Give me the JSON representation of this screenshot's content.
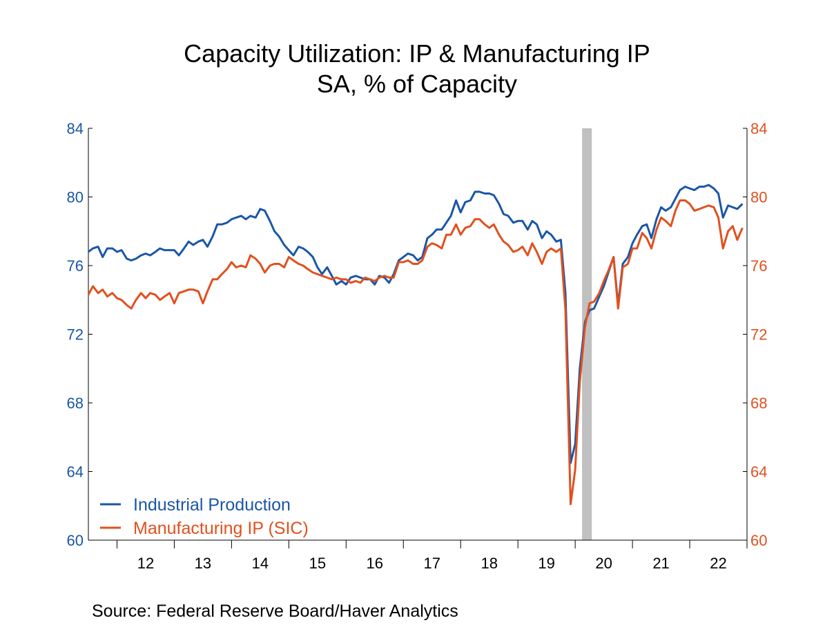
{
  "chart_data": {
    "type": "line",
    "title": "Capacity Utilization: IP & Manufacturing IP",
    "subtitle": "SA, % of Capacity",
    "source": "Source:  Federal Reserve Board/Haver Analytics",
    "x_tick_labels": [
      "12",
      "13",
      "14",
      "15",
      "16",
      "17",
      "18",
      "19",
      "20",
      "21",
      "22"
    ],
    "xlim": [
      2011.5,
      2023.0
    ],
    "y_left": {
      "range": [
        60,
        84
      ],
      "ticks": [
        "60",
        "64",
        "68",
        "72",
        "76",
        "80",
        "84"
      ],
      "color": "#1a56a6"
    },
    "y_right": {
      "range": [
        60,
        84
      ],
      "ticks": [
        "60",
        "64",
        "68",
        "72",
        "76",
        "80",
        "84"
      ],
      "color": "#e0501e"
    },
    "recession": {
      "start": 2020.12,
      "end": 2020.29,
      "color": "#c0c0c0"
    },
    "legend_position": "bottom-left",
    "series": [
      {
        "name": "Industrial Production",
        "color": "#1a56a6",
        "x": [
          2011.5,
          2011.58,
          2011.67,
          2011.75,
          2011.83,
          2011.92,
          2012.0,
          2012.08,
          2012.17,
          2012.25,
          2012.33,
          2012.42,
          2012.5,
          2012.58,
          2012.67,
          2012.75,
          2012.83,
          2012.92,
          2013.0,
          2013.08,
          2013.17,
          2013.25,
          2013.33,
          2013.42,
          2013.5,
          2013.58,
          2013.67,
          2013.75,
          2013.83,
          2013.92,
          2014.0,
          2014.08,
          2014.17,
          2014.25,
          2014.33,
          2014.42,
          2014.5,
          2014.58,
          2014.67,
          2014.75,
          2014.83,
          2014.92,
          2015.0,
          2015.08,
          2015.17,
          2015.25,
          2015.33,
          2015.42,
          2015.5,
          2015.58,
          2015.67,
          2015.75,
          2015.83,
          2015.92,
          2016.0,
          2016.08,
          2016.17,
          2016.25,
          2016.33,
          2016.42,
          2016.5,
          2016.58,
          2016.67,
          2016.75,
          2016.83,
          2016.92,
          2017.0,
          2017.08,
          2017.17,
          2017.25,
          2017.33,
          2017.42,
          2017.5,
          2017.58,
          2017.67,
          2017.75,
          2017.83,
          2017.92,
          2018.0,
          2018.08,
          2018.17,
          2018.25,
          2018.33,
          2018.42,
          2018.5,
          2018.58,
          2018.67,
          2018.75,
          2018.83,
          2018.92,
          2019.0,
          2019.08,
          2019.17,
          2019.25,
          2019.33,
          2019.42,
          2019.5,
          2019.58,
          2019.67,
          2019.75,
          2019.83,
          2019.92,
          2020.0,
          2020.08,
          2020.17,
          2020.25,
          2020.33,
          2020.42,
          2020.5,
          2020.58,
          2020.67,
          2020.75,
          2020.83,
          2020.92,
          2021.0,
          2021.08,
          2021.17,
          2021.25,
          2021.33,
          2021.42,
          2021.5,
          2021.58,
          2021.67,
          2021.75,
          2021.83,
          2021.92,
          2022.0,
          2022.08,
          2022.17,
          2022.25,
          2022.33,
          2022.42,
          2022.5,
          2022.58,
          2022.67,
          2022.75,
          2022.83,
          2022.92
        ],
        "values": [
          76.8,
          77.0,
          77.1,
          76.5,
          77.0,
          77.0,
          76.8,
          76.9,
          76.4,
          76.3,
          76.4,
          76.6,
          76.7,
          76.6,
          76.8,
          77.0,
          76.9,
          76.9,
          76.9,
          76.6,
          77.0,
          77.4,
          77.2,
          77.4,
          77.5,
          77.1,
          77.7,
          78.4,
          78.4,
          78.5,
          78.7,
          78.8,
          78.9,
          78.7,
          78.9,
          78.8,
          79.3,
          79.2,
          78.6,
          78.0,
          77.7,
          77.2,
          76.9,
          76.6,
          77.1,
          77.0,
          76.8,
          76.5,
          75.9,
          75.5,
          75.9,
          75.4,
          74.9,
          75.1,
          74.9,
          75.3,
          75.4,
          75.3,
          75.2,
          75.2,
          74.9,
          75.4,
          75.3,
          75.0,
          75.5,
          76.3,
          76.5,
          76.7,
          76.6,
          76.3,
          76.5,
          77.6,
          77.8,
          78.1,
          78.1,
          78.5,
          78.9,
          79.8,
          79.1,
          79.7,
          79.8,
          80.3,
          80.3,
          80.2,
          80.2,
          80.1,
          79.6,
          79.0,
          78.9,
          78.5,
          78.6,
          78.6,
          78.1,
          78.6,
          78.4,
          77.6,
          78.0,
          77.8,
          77.4,
          77.5,
          74.4,
          64.5,
          65.6,
          70.0,
          72.7,
          73.4,
          73.5,
          74.2,
          74.8,
          75.6,
          76.5,
          73.7,
          76.1,
          76.5,
          77.3,
          77.8,
          78.3,
          78.4,
          77.6,
          78.7,
          79.4,
          79.2,
          79.4,
          79.9,
          80.4,
          80.6,
          80.5,
          80.4,
          80.6,
          80.6,
          80.7,
          80.5,
          80.2,
          78.8,
          79.5,
          79.4,
          79.3,
          79.6
        ]
      },
      {
        "name": "Manufacturing IP (SIC)",
        "color": "#e0501e",
        "x": [
          2011.5,
          2011.58,
          2011.67,
          2011.75,
          2011.83,
          2011.92,
          2012.0,
          2012.08,
          2012.17,
          2012.25,
          2012.33,
          2012.42,
          2012.5,
          2012.58,
          2012.67,
          2012.75,
          2012.83,
          2012.92,
          2013.0,
          2013.08,
          2013.17,
          2013.25,
          2013.33,
          2013.42,
          2013.5,
          2013.58,
          2013.67,
          2013.75,
          2013.83,
          2013.92,
          2014.0,
          2014.08,
          2014.17,
          2014.25,
          2014.33,
          2014.42,
          2014.5,
          2014.58,
          2014.67,
          2014.75,
          2014.83,
          2014.92,
          2015.0,
          2015.08,
          2015.17,
          2015.25,
          2015.33,
          2015.42,
          2015.5,
          2015.58,
          2015.67,
          2015.75,
          2015.83,
          2015.92,
          2016.0,
          2016.08,
          2016.17,
          2016.25,
          2016.33,
          2016.42,
          2016.5,
          2016.58,
          2016.67,
          2016.75,
          2016.83,
          2016.92,
          2017.0,
          2017.08,
          2017.17,
          2017.25,
          2017.33,
          2017.42,
          2017.5,
          2017.58,
          2017.67,
          2017.75,
          2017.83,
          2017.92,
          2018.0,
          2018.08,
          2018.17,
          2018.25,
          2018.33,
          2018.42,
          2018.5,
          2018.58,
          2018.67,
          2018.75,
          2018.83,
          2018.92,
          2019.0,
          2019.08,
          2019.17,
          2019.25,
          2019.33,
          2019.42,
          2019.5,
          2019.58,
          2019.67,
          2019.75,
          2019.83,
          2019.92,
          2020.0,
          2020.08,
          2020.17,
          2020.25,
          2020.33,
          2020.42,
          2020.5,
          2020.58,
          2020.67,
          2020.75,
          2020.83,
          2020.92,
          2021.0,
          2021.08,
          2021.17,
          2021.25,
          2021.33,
          2021.42,
          2021.5,
          2021.58,
          2021.67,
          2021.75,
          2021.83,
          2021.92,
          2022.0,
          2022.08,
          2022.17,
          2022.25,
          2022.33,
          2022.42,
          2022.5,
          2022.58,
          2022.67,
          2022.75,
          2022.83,
          2022.92
        ],
        "values": [
          74.3,
          74.8,
          74.4,
          74.6,
          74.2,
          74.4,
          74.1,
          74.0,
          73.7,
          73.5,
          74.0,
          74.4,
          74.1,
          74.4,
          74.3,
          74.0,
          74.2,
          74.4,
          73.8,
          74.4,
          74.5,
          74.6,
          74.6,
          74.5,
          73.8,
          74.5,
          75.2,
          75.2,
          75.5,
          75.8,
          76.2,
          75.9,
          76.0,
          75.9,
          76.6,
          76.4,
          76.1,
          75.6,
          76.0,
          76.1,
          76.1,
          75.9,
          76.5,
          76.3,
          76.1,
          76.0,
          75.8,
          75.6,
          75.5,
          75.4,
          75.3,
          75.2,
          75.3,
          75.2,
          75.2,
          75.0,
          75.1,
          75.0,
          75.3,
          75.2,
          75.1,
          75.3,
          75.4,
          75.3,
          75.3,
          76.2,
          76.2,
          76.3,
          76.1,
          76.1,
          76.3,
          77.1,
          77.3,
          77.2,
          77.0,
          77.8,
          77.8,
          78.4,
          77.8,
          78.2,
          78.3,
          78.7,
          78.7,
          78.4,
          78.2,
          78.4,
          77.8,
          77.4,
          77.2,
          76.8,
          76.9,
          77.1,
          76.6,
          77.3,
          76.8,
          76.1,
          76.8,
          77.0,
          76.8,
          77.0,
          73.4,
          62.1,
          64.1,
          69.2,
          72.4,
          73.8,
          73.9,
          74.4,
          75.1,
          75.7,
          76.5,
          73.5,
          75.9,
          76.1,
          77.0,
          77.0,
          77.9,
          77.6,
          77.0,
          78.1,
          78.8,
          78.6,
          78.3,
          79.2,
          79.8,
          79.8,
          79.6,
          79.2,
          79.3,
          79.4,
          79.5,
          79.4,
          78.8,
          77.0,
          78.0,
          78.3,
          77.5,
          78.2
        ]
      }
    ]
  }
}
